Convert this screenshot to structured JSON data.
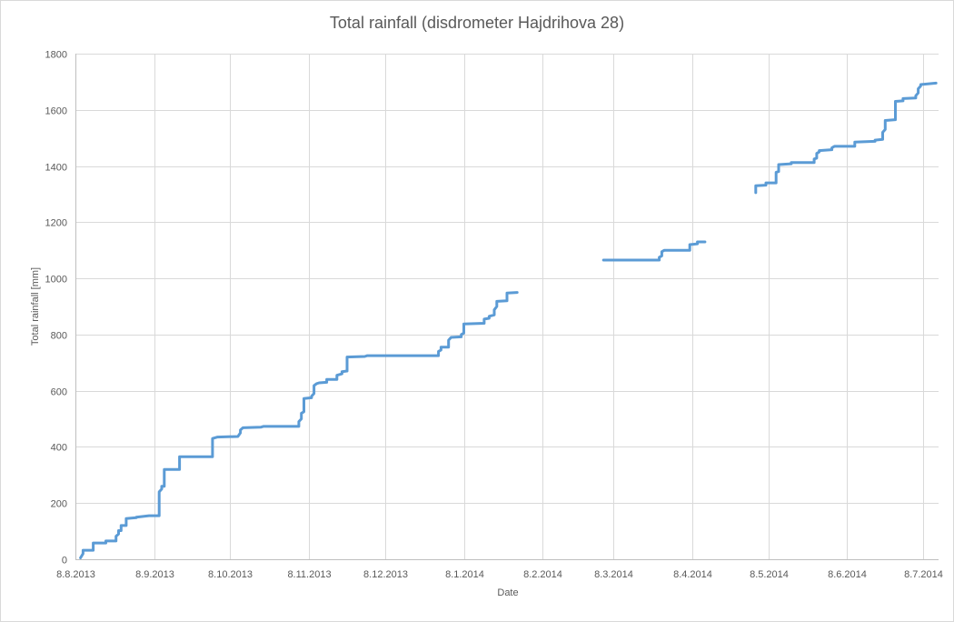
{
  "chart_data": {
    "type": "line",
    "title": "Total rainfall (disdrometer Hajdrihova 28)",
    "xlabel": "Date",
    "ylabel": "Total rainfall [mm]",
    "ylim": [
      0,
      1800
    ],
    "yticks": [
      0,
      200,
      400,
      600,
      800,
      1000,
      1200,
      1400,
      1600,
      1800
    ],
    "xlim": [
      "2013-08-08",
      "2014-07-14"
    ],
    "xticks": [
      {
        "date": "2013-08-08",
        "label": "8.8.2013"
      },
      {
        "date": "2013-09-08",
        "label": "8.9.2013"
      },
      {
        "date": "2013-10-08",
        "label": "8.10.2013"
      },
      {
        "date": "2013-11-08",
        "label": "8.11.2013"
      },
      {
        "date": "2013-12-08",
        "label": "8.12.2013"
      },
      {
        "date": "2014-01-08",
        "label": "8.1.2014"
      },
      {
        "date": "2014-02-08",
        "label": "8.2.2014"
      },
      {
        "date": "2014-03-08",
        "label": "8.3.2014"
      },
      {
        "date": "2014-04-08",
        "label": "8.4.2014"
      },
      {
        "date": "2014-05-08",
        "label": "8.5.2014"
      },
      {
        "date": "2014-06-08",
        "label": "8.6.2014"
      },
      {
        "date": "2014-07-08",
        "label": "8.7.2014"
      }
    ],
    "grid": {
      "horizontal": true,
      "vertical": true
    },
    "legend": "none",
    "color": "#5b9bd5",
    "series": [
      {
        "segments": [
          [
            [
              "2013-08-10",
              5
            ],
            [
              "2013-08-11",
              20
            ],
            [
              "2013-08-11",
              32
            ],
            [
              "2013-08-15",
              32
            ],
            [
              "2013-08-15",
              58
            ],
            [
              "2013-08-20",
              58
            ],
            [
              "2013-08-20",
              65
            ],
            [
              "2013-08-24",
              65
            ],
            [
              "2013-08-24",
              82
            ],
            [
              "2013-08-25",
              90
            ],
            [
              "2013-08-25",
              102
            ],
            [
              "2013-08-26",
              102
            ],
            [
              "2013-08-26",
              120
            ],
            [
              "2013-08-28",
              120
            ],
            [
              "2013-08-28",
              145
            ],
            [
              "2013-09-01",
              148
            ],
            [
              "2013-09-01",
              150
            ],
            [
              "2013-09-06",
              155
            ],
            [
              "2013-09-10",
              155
            ],
            [
              "2013-09-10",
              240
            ],
            [
              "2013-09-11",
              250
            ],
            [
              "2013-09-11",
              260
            ],
            [
              "2013-09-12",
              260
            ],
            [
              "2013-09-12",
              320
            ],
            [
              "2013-09-18",
              320
            ],
            [
              "2013-09-18",
              365
            ],
            [
              "2013-10-01",
              365
            ],
            [
              "2013-10-01",
              430
            ],
            [
              "2013-10-03",
              435
            ],
            [
              "2013-10-11",
              437
            ],
            [
              "2013-10-12",
              450
            ],
            [
              "2013-10-12",
              460
            ],
            [
              "2013-10-13",
              468
            ],
            [
              "2013-10-20",
              470
            ],
            [
              "2013-10-21",
              473
            ],
            [
              "2013-11-04",
              473
            ],
            [
              "2013-11-04",
              490
            ],
            [
              "2013-11-05",
              500
            ],
            [
              "2013-11-05",
              520
            ],
            [
              "2013-11-06",
              525
            ],
            [
              "2013-11-06",
              572
            ],
            [
              "2013-11-09",
              575
            ],
            [
              "2013-11-09",
              580
            ],
            [
              "2013-11-10",
              590
            ],
            [
              "2013-11-10",
              618
            ],
            [
              "2013-11-11",
              625
            ],
            [
              "2013-11-12",
              628
            ],
            [
              "2013-11-15",
              630
            ],
            [
              "2013-11-15",
              640
            ],
            [
              "2013-11-19",
              640
            ],
            [
              "2013-11-19",
              655
            ],
            [
              "2013-11-21",
              660
            ],
            [
              "2013-11-21",
              668
            ],
            [
              "2013-11-23",
              670
            ],
            [
              "2013-11-23",
              720
            ],
            [
              "2013-11-30",
              722
            ],
            [
              "2013-12-01",
              725
            ],
            [
              "2013-12-29",
              725
            ],
            [
              "2013-12-29",
              740
            ],
            [
              "2013-12-30",
              745
            ],
            [
              "2013-12-30",
              755
            ],
            [
              "2014-01-02",
              755
            ],
            [
              "2014-01-02",
              780
            ],
            [
              "2014-01-03",
              790
            ],
            [
              "2014-01-07",
              792
            ],
            [
              "2014-01-07",
              800
            ],
            [
              "2014-01-08",
              805
            ],
            [
              "2014-01-08",
              838
            ],
            [
              "2014-01-16",
              840
            ],
            [
              "2014-01-16",
              855
            ],
            [
              "2014-01-18",
              858
            ],
            [
              "2014-01-18",
              865
            ],
            [
              "2014-01-20",
              870
            ],
            [
              "2014-01-20",
              888
            ],
            [
              "2014-01-21",
              900
            ],
            [
              "2014-01-21",
              918
            ],
            [
              "2014-01-25",
              920
            ],
            [
              "2014-01-25",
              948
            ],
            [
              "2014-01-29",
              950
            ]
          ],
          [
            [
              "2014-03-04",
              1065
            ],
            [
              "2014-03-26",
              1065
            ],
            [
              "2014-03-26",
              1075
            ],
            [
              "2014-03-27",
              1080
            ],
            [
              "2014-03-27",
              1095
            ],
            [
              "2014-03-28",
              1100
            ],
            [
              "2014-04-07",
              1100
            ],
            [
              "2014-04-07",
              1120
            ],
            [
              "2014-04-10",
              1123
            ],
            [
              "2014-04-10",
              1130
            ],
            [
              "2014-04-13",
              1130
            ]
          ],
          [
            [
              "2014-05-03",
              1305
            ],
            [
              "2014-05-03",
              1330
            ],
            [
              "2014-05-07",
              1332
            ],
            [
              "2014-05-07",
              1340
            ],
            [
              "2014-05-11",
              1340
            ],
            [
              "2014-05-11",
              1378
            ],
            [
              "2014-05-12",
              1380
            ],
            [
              "2014-05-12",
              1405
            ],
            [
              "2014-05-17",
              1408
            ],
            [
              "2014-05-17",
              1412
            ],
            [
              "2014-05-26",
              1412
            ],
            [
              "2014-05-26",
              1425
            ],
            [
              "2014-05-27",
              1428
            ],
            [
              "2014-05-27",
              1445
            ],
            [
              "2014-05-28",
              1450
            ],
            [
              "2014-05-28",
              1455
            ],
            [
              "2014-06-02",
              1458
            ],
            [
              "2014-06-02",
              1465
            ],
            [
              "2014-06-03",
              1470
            ],
            [
              "2014-06-11",
              1470
            ],
            [
              "2014-06-11",
              1485
            ],
            [
              "2014-06-19",
              1488
            ],
            [
              "2014-06-19",
              1492
            ],
            [
              "2014-06-22",
              1495
            ],
            [
              "2014-06-22",
              1520
            ],
            [
              "2014-06-23",
              1530
            ],
            [
              "2014-06-23",
              1562
            ],
            [
              "2014-06-27",
              1565
            ],
            [
              "2014-06-27",
              1630
            ],
            [
              "2014-06-30",
              1632
            ],
            [
              "2014-06-30",
              1640
            ],
            [
              "2014-07-05",
              1642
            ],
            [
              "2014-07-05",
              1650
            ],
            [
              "2014-07-06",
              1660
            ],
            [
              "2014-07-06",
              1675
            ],
            [
              "2014-07-07",
              1685
            ],
            [
              "2014-07-07",
              1690
            ],
            [
              "2014-07-13",
              1695
            ]
          ]
        ]
      }
    ]
  }
}
